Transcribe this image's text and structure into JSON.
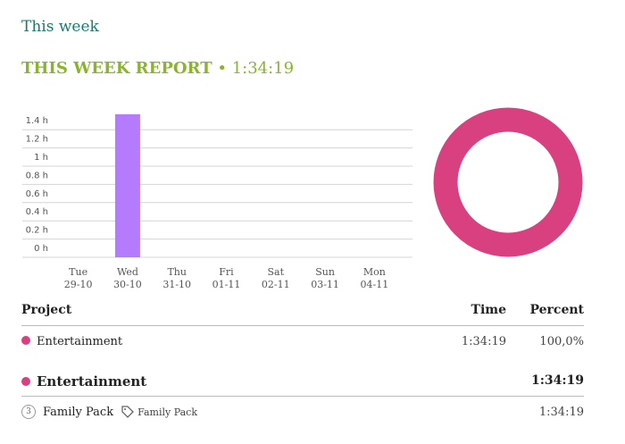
{
  "header": {
    "title": "This week"
  },
  "report": {
    "title": "THIS WEEK REPORT",
    "separator": "•",
    "total": "1:34:19"
  },
  "chart_data": [
    {
      "type": "bar",
      "categories": [
        "Tue",
        "Wed",
        "Thu",
        "Fri",
        "Sat",
        "Sun",
        "Mon"
      ],
      "dates": [
        "29-10",
        "30-10",
        "31-10",
        "01-11",
        "02-11",
        "03-11",
        "04-11"
      ],
      "values": [
        0,
        1.57,
        0,
        0,
        0,
        0,
        0
      ],
      "color": "#b57bff",
      "ylim": [
        0,
        1.6
      ],
      "yticks": [
        {
          "value": 0,
          "label": "0 h"
        },
        {
          "value": 0.2,
          "label": "0.2 h"
        },
        {
          "value": 0.4,
          "label": "0.4 h"
        },
        {
          "value": 0.6,
          "label": "0.6 h"
        },
        {
          "value": 0.8,
          "label": "0.8 h"
        },
        {
          "value": 1,
          "label": "1 h"
        },
        {
          "value": 1.2,
          "label": "1.2 h"
        },
        {
          "value": 1.4,
          "label": "1.4 h"
        }
      ],
      "grid": true
    },
    {
      "type": "pie",
      "values": [
        100
      ],
      "colors": [
        "#d9407f"
      ]
    }
  ],
  "table": {
    "headers": [
      "Project",
      "Time",
      "Percent"
    ],
    "rows": [
      {
        "project": "Entertainment",
        "color": "#d9407f",
        "time": "1:34:19",
        "percent": "100,0%"
      }
    ]
  },
  "groups": [
    {
      "project": "Entertainment",
      "color": "#d9407f",
      "time": "1:34:19",
      "entries": [
        {
          "count": "3",
          "description": "Family Pack",
          "tag": "Family Pack",
          "time": "1:34:19"
        }
      ]
    }
  ]
}
